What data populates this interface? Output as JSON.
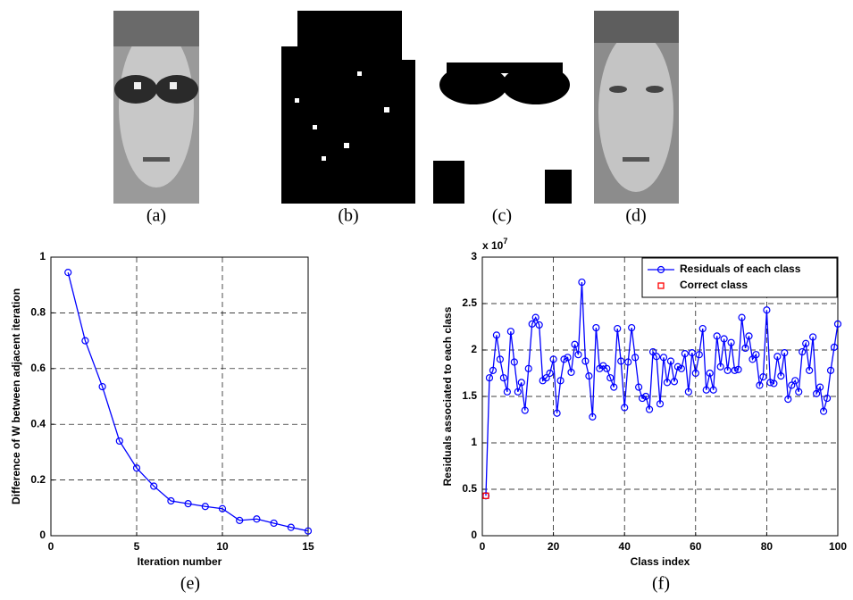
{
  "images": [
    {
      "caption": "(a)"
    },
    {
      "caption": "(b)"
    },
    {
      "caption": "(c)"
    },
    {
      "caption": "(d)"
    }
  ],
  "chart_data": [
    {
      "type": "line",
      "caption": "(e)",
      "xlabel": "Iteration number",
      "ylabel": "Difference of W between adjacent iteration",
      "xlim": [
        0,
        15
      ],
      "xticks": [
        0,
        5,
        10,
        15
      ],
      "ylim": [
        0,
        1
      ],
      "yticks": [
        0,
        0.2,
        0.4,
        0.6,
        0.8,
        1
      ],
      "grid": true,
      "series": [
        {
          "color": "#0000ff",
          "marker": "circle",
          "x": [
            1,
            2,
            3,
            4,
            5,
            6,
            7,
            8,
            9,
            10,
            11,
            12,
            13,
            14,
            15
          ],
          "values": [
            0.945,
            0.7,
            0.535,
            0.34,
            0.243,
            0.178,
            0.125,
            0.115,
            0.105,
            0.097,
            0.055,
            0.06,
            0.045,
            0.03,
            0.017
          ]
        }
      ]
    },
    {
      "type": "line",
      "caption": "(f)",
      "xlabel": "Class index",
      "ylabel": "Residuals associated to each class",
      "y_multiplier": "x 10",
      "y_multiplier_exp": "7",
      "xlim": [
        0,
        100
      ],
      "xticks": [
        0,
        20,
        40,
        60,
        80,
        100
      ],
      "ylim": [
        0,
        3
      ],
      "yticks": [
        0,
        0.5,
        1,
        1.5,
        2,
        2.5,
        3
      ],
      "grid": true,
      "legend": "northeast",
      "series": [
        {
          "name": "Residuals of each class",
          "color": "#0000ff",
          "marker": "circle",
          "x": [
            1,
            2,
            3,
            4,
            5,
            6,
            7,
            8,
            9,
            10,
            11,
            12,
            13,
            14,
            15,
            16,
            17,
            18,
            19,
            20,
            21,
            22,
            23,
            24,
            25,
            26,
            27,
            28,
            29,
            30,
            31,
            32,
            33,
            34,
            35,
            36,
            37,
            38,
            39,
            40,
            41,
            42,
            43,
            44,
            45,
            46,
            47,
            48,
            49,
            50,
            51,
            52,
            53,
            54,
            55,
            56,
            57,
            58,
            59,
            60,
            61,
            62,
            63,
            64,
            65,
            66,
            67,
            68,
            69,
            70,
            71,
            72,
            73,
            74,
            75,
            76,
            77,
            78,
            79,
            80,
            81,
            82,
            83,
            84,
            85,
            86,
            87,
            88,
            89,
            90,
            91,
            92,
            93,
            94,
            95,
            96,
            97,
            98,
            99,
            100
          ],
          "values": [
            0.43,
            1.7,
            1.78,
            2.16,
            1.9,
            1.7,
            1.55,
            2.2,
            1.87,
            1.55,
            1.65,
            1.35,
            1.8,
            2.28,
            2.35,
            2.27,
            1.67,
            1.7,
            1.75,
            1.9,
            1.32,
            1.67,
            1.9,
            1.92,
            1.76,
            2.06,
            1.95,
            2.73,
            1.88,
            1.72,
            1.28,
            2.24,
            1.8,
            1.83,
            1.8,
            1.7,
            1.6,
            2.23,
            1.88,
            1.38,
            1.87,
            2.24,
            1.92,
            1.6,
            1.48,
            1.5,
            1.36,
            1.98,
            1.93,
            1.42,
            1.92,
            1.65,
            1.88,
            1.66,
            1.82,
            1.8,
            1.96,
            1.55,
            1.97,
            1.75,
            1.95,
            2.23,
            1.57,
            1.75,
            1.57,
            2.15,
            1.82,
            2.12,
            1.78,
            2.08,
            1.78,
            1.79,
            2.35,
            2.02,
            2.15,
            1.9,
            1.95,
            1.62,
            1.71,
            2.43,
            1.65,
            1.64,
            1.93,
            1.72,
            1.97,
            1.47,
            1.62,
            1.67,
            1.55,
            1.98,
            2.07,
            1.78,
            2.14,
            1.53,
            1.6,
            1.34,
            1.48,
            1.78,
            2.03,
            2.28
          ]
        },
        {
          "name": "Correct class",
          "color": "#ff0000",
          "marker": "square",
          "line": false,
          "x": [
            1
          ],
          "values": [
            0.43
          ]
        }
      ]
    }
  ]
}
